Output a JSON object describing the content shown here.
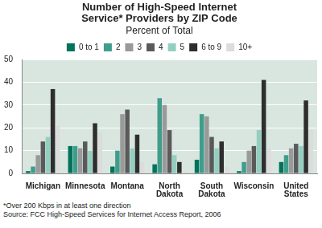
{
  "chart_data": {
    "type": "bar",
    "title": "Number of High-Speed Internet Service* Providers by ZIP Code",
    "subtitle": "Percent of Total",
    "categories": [
      "Michigan",
      "Minnesota",
      "Montana",
      "North Dakota",
      "South Dakota",
      "Wisconsin",
      "United States"
    ],
    "series": [
      {
        "name": "0 to 1",
        "color": "#00735a",
        "values": [
          1,
          12,
          3,
          4,
          6,
          1,
          5
        ]
      },
      {
        "name": "2",
        "color": "#3f9d8b",
        "values": [
          3,
          12,
          10,
          33,
          26,
          5,
          8
        ]
      },
      {
        "name": "3",
        "color": "#9a9a9a",
        "values": [
          8,
          11,
          26,
          30,
          25,
          10,
          11
        ]
      },
      {
        "name": "4",
        "color": "#5a5a5a",
        "values": [
          14,
          14,
          28,
          19,
          16,
          12,
          13
        ]
      },
      {
        "name": "5",
        "color": "#93cfc0",
        "values": [
          16,
          10,
          11,
          8,
          11,
          19,
          12
        ]
      },
      {
        "name": "6 to 9",
        "color": "#2e2e2e",
        "values": [
          37,
          22,
          17,
          5,
          14,
          41,
          32
        ]
      },
      {
        "name": "10+",
        "color": "#dcdcdc",
        "values": [
          21,
          18,
          5,
          1,
          3,
          11,
          19
        ]
      }
    ],
    "ylim": [
      0,
      50
    ],
    "yticks": [
      0,
      10,
      20,
      30,
      40,
      50
    ],
    "grid": true,
    "legend": "top",
    "annotations": [
      "*Over 200 Kbps in at least one direction",
      "Source: FCC High-Speed Services for Internet Access Report, 2006"
    ]
  }
}
